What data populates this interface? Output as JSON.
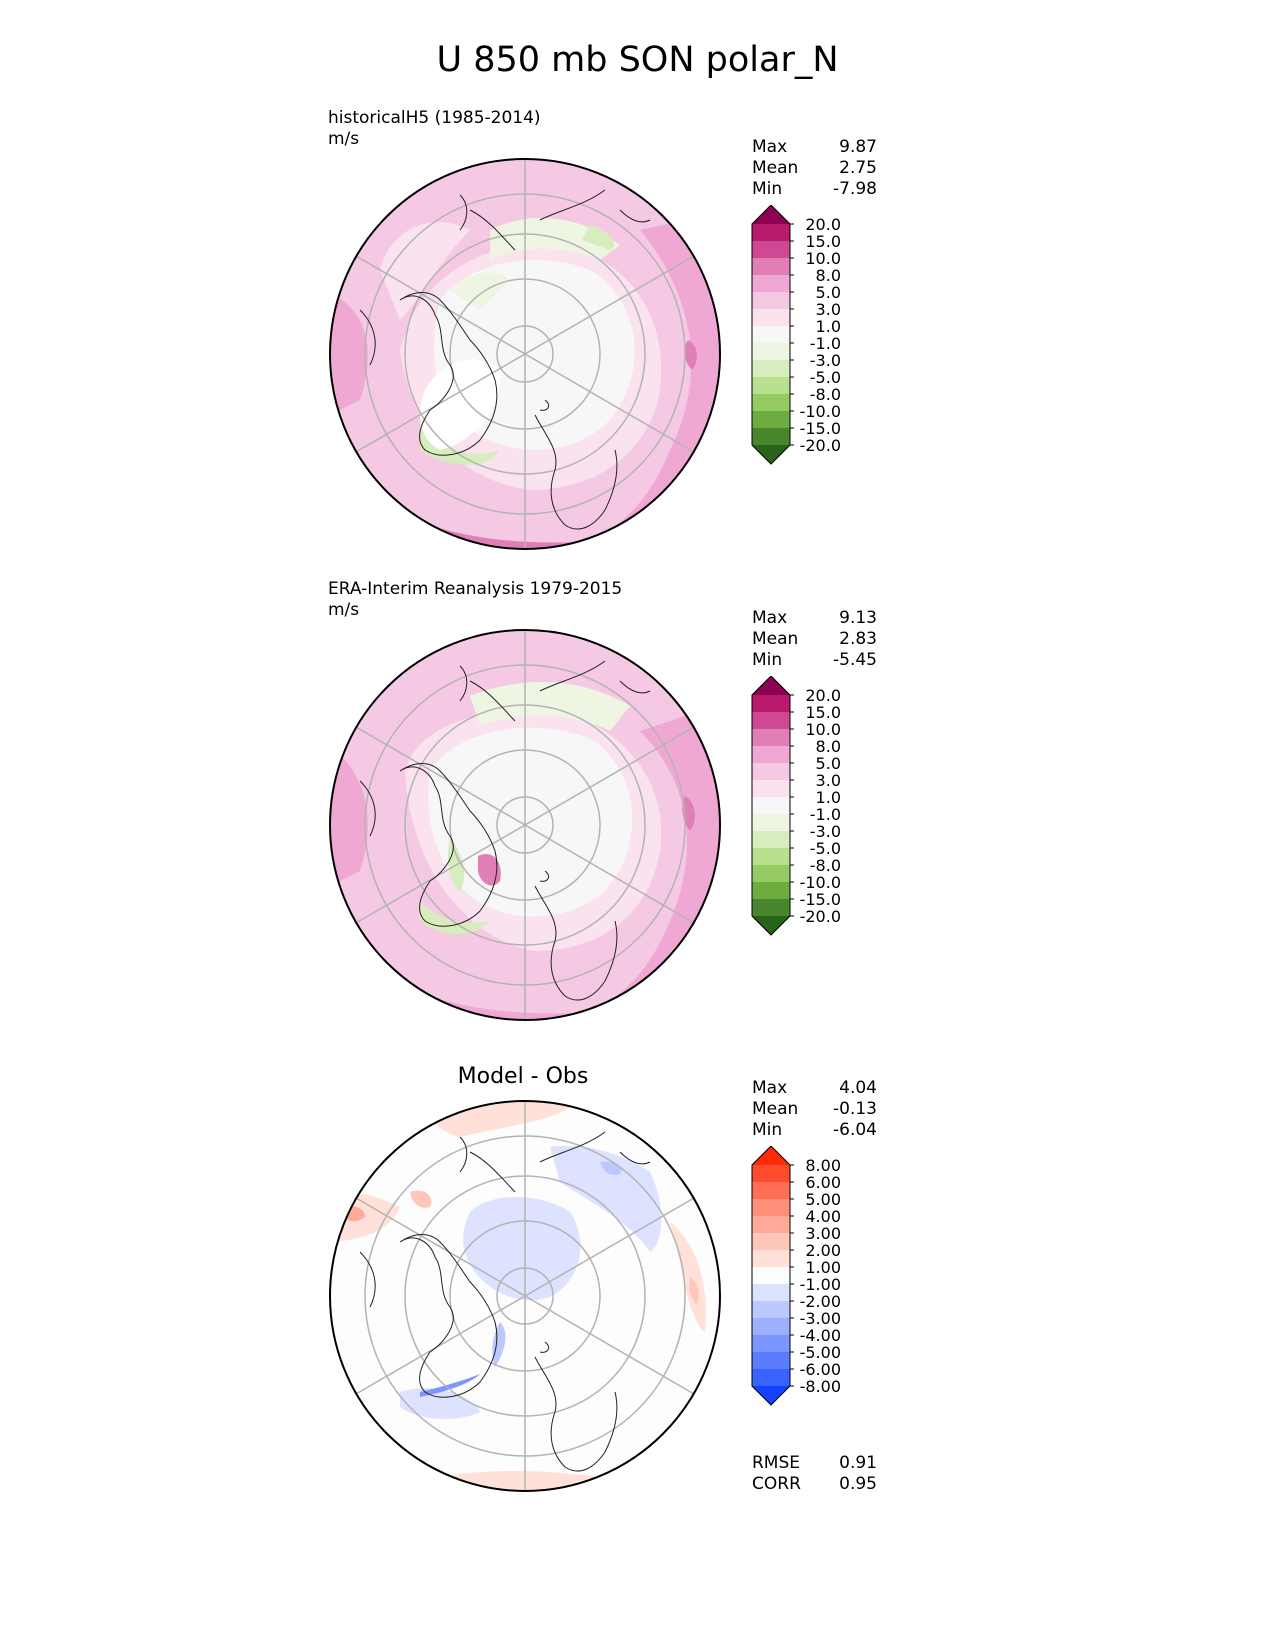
{
  "figure": {
    "title": "U 850 mb SON polar_N"
  },
  "panels": [
    {
      "id": "model",
      "title": "historicalH5 (1985-2014)",
      "units": "m/s",
      "stats": [
        {
          "label": "Max",
          "value": "9.87"
        },
        {
          "label": "Mean",
          "value": "2.75"
        },
        {
          "label": "Min",
          "value": "-7.98"
        }
      ]
    },
    {
      "id": "obs",
      "title": "ERA-Interim Reanalysis 1979-2015",
      "units": "m/s",
      "stats": [
        {
          "label": "Max",
          "value": "9.13"
        },
        {
          "label": "Mean",
          "value": "2.83"
        },
        {
          "label": "Min",
          "value": "-5.45"
        }
      ]
    },
    {
      "id": "diff",
      "title": "Model - Obs",
      "stats": [
        {
          "label": "Max",
          "value": "4.04"
        },
        {
          "label": "Mean",
          "value": "-0.13"
        },
        {
          "label": "Min",
          "value": "-6.04"
        }
      ],
      "metrics": [
        {
          "label": "RMSE",
          "value": "0.91"
        },
        {
          "label": "CORR",
          "value": "0.95"
        }
      ]
    }
  ],
  "colorbars": {
    "wind": {
      "labels": [
        "20.0",
        "15.0",
        "10.0",
        "8.0",
        "5.0",
        "3.0",
        "1.0",
        "-1.0",
        "-3.0",
        "-5.0",
        "-8.0",
        "-10.0",
        "-15.0",
        "-20.0"
      ],
      "colors": [
        "#8e0152",
        "#b81a6c",
        "#cf4894",
        "#e07fb6",
        "#efa8d3",
        "#f5c9e3",
        "#fae2ef",
        "#f7f7f7",
        "#eef5e2",
        "#d7edbe",
        "#b8e08e",
        "#94cb63",
        "#6dac3e",
        "#47862c",
        "#276419"
      ]
    },
    "diff": {
      "labels": [
        "8.00",
        "6.00",
        "5.00",
        "4.00",
        "3.00",
        "2.00",
        "1.00",
        "-1.00",
        "-2.00",
        "-3.00",
        "-4.00",
        "-5.00",
        "-6.00",
        "-8.00"
      ],
      "colors": [
        "#ff2a0a",
        "#ff4c2c",
        "#ff6e55",
        "#ff8e7a",
        "#ffaa99",
        "#ffc6ba",
        "#ffe1da",
        "#fdfdfd",
        "#dde3ff",
        "#bcc9ff",
        "#9cb0ff",
        "#7b96ff",
        "#5a7cff",
        "#3a62ff",
        "#1440ff"
      ]
    }
  }
}
